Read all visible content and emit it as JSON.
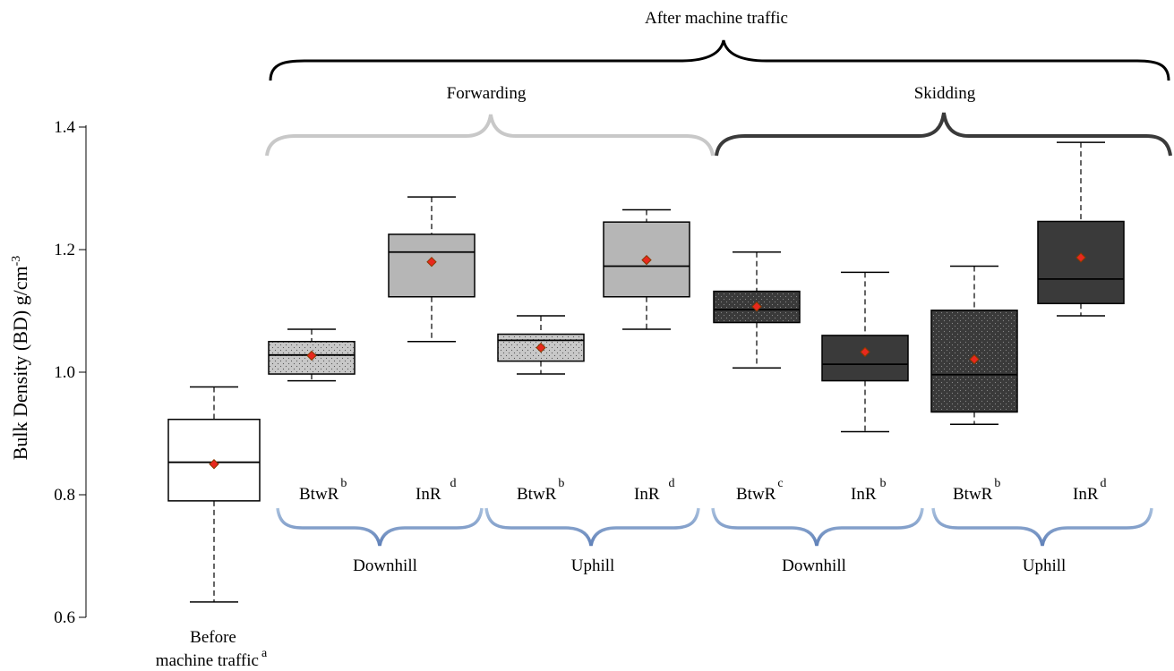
{
  "chart_data": {
    "type": "box",
    "ylabel": "Bulk Density (BD) g/cm",
    "ylabel_sup": "-3",
    "ylim": [
      0.6,
      1.4
    ],
    "yticks": [
      "0.6",
      "0.8",
      "1.0",
      "1.2",
      "1.4"
    ],
    "top_group_label": "After machine traffic",
    "groups": [
      {
        "label": "Forwarding",
        "color": "#c8c8c8"
      },
      {
        "label": "Skidding",
        "color": "#3a3a3a"
      }
    ],
    "slope_groups": [
      {
        "label": "Downhill"
      },
      {
        "label": "Uphill"
      },
      {
        "label": "Downhill"
      },
      {
        "label": "Uphill"
      }
    ],
    "boxes": [
      {
        "label": "Before machine traffic",
        "label_lines": [
          "Before",
          "machine traffic"
        ],
        "sig": "a",
        "fill": "#ffffff",
        "pattern": "none",
        "min": 0.625,
        "q1": 0.79,
        "median": 0.853,
        "q3": 0.923,
        "max": 0.976,
        "mean": 0.85
      },
      {
        "label": "BtwR",
        "sig": "b",
        "fill": "#c8c8c8",
        "pattern": "dots",
        "min": 0.986,
        "q1": 0.997,
        "median": 1.028,
        "q3": 1.05,
        "max": 1.07,
        "mean": 1.027
      },
      {
        "label": "InR",
        "sig": "d",
        "fill": "#b6b6b6",
        "pattern": "none",
        "min": 1.05,
        "q1": 1.123,
        "median": 1.196,
        "q3": 1.225,
        "max": 1.286,
        "mean": 1.18
      },
      {
        "label": "BtwR",
        "sig": "b",
        "fill": "#c8c8c8",
        "pattern": "dots",
        "min": 0.997,
        "q1": 1.018,
        "median": 1.052,
        "q3": 1.062,
        "max": 1.092,
        "mean": 1.04
      },
      {
        "label": "InR",
        "sig": "d",
        "fill": "#b6b6b6",
        "pattern": "none",
        "min": 1.07,
        "q1": 1.123,
        "median": 1.173,
        "q3": 1.245,
        "max": 1.265,
        "mean": 1.183
      },
      {
        "label": "BtwR",
        "sig": "c",
        "fill": "#3a3a3a",
        "pattern": "dots",
        "min": 1.007,
        "q1": 1.081,
        "median": 1.102,
        "q3": 1.132,
        "max": 1.196,
        "mean": 1.107
      },
      {
        "label": "InR",
        "sig": "b",
        "fill": "#3a3a3a",
        "pattern": "none",
        "min": 0.903,
        "q1": 0.986,
        "median": 1.013,
        "q3": 1.06,
        "max": 1.163,
        "mean": 1.033
      },
      {
        "label": "BtwR",
        "sig": "b",
        "fill": "#3a3a3a",
        "pattern": "dots",
        "min": 0.915,
        "q1": 0.935,
        "median": 0.996,
        "q3": 1.101,
        "max": 1.173,
        "mean": 1.021
      },
      {
        "label": "InR",
        "sig": "d",
        "fill": "#3a3a3a",
        "pattern": "none",
        "min": 1.092,
        "q1": 1.112,
        "median": 1.152,
        "q3": 1.246,
        "max": 1.375,
        "mean": 1.187
      }
    ],
    "colors": {
      "mean_marker": "#e8281e",
      "mean_marker_stroke": "#8a3a00",
      "forwarding_brace": "#c8c8c8",
      "skidding_brace": "#3a3a3a",
      "slope_brace": "#6f8fbf",
      "top_brace": "#000000"
    }
  }
}
